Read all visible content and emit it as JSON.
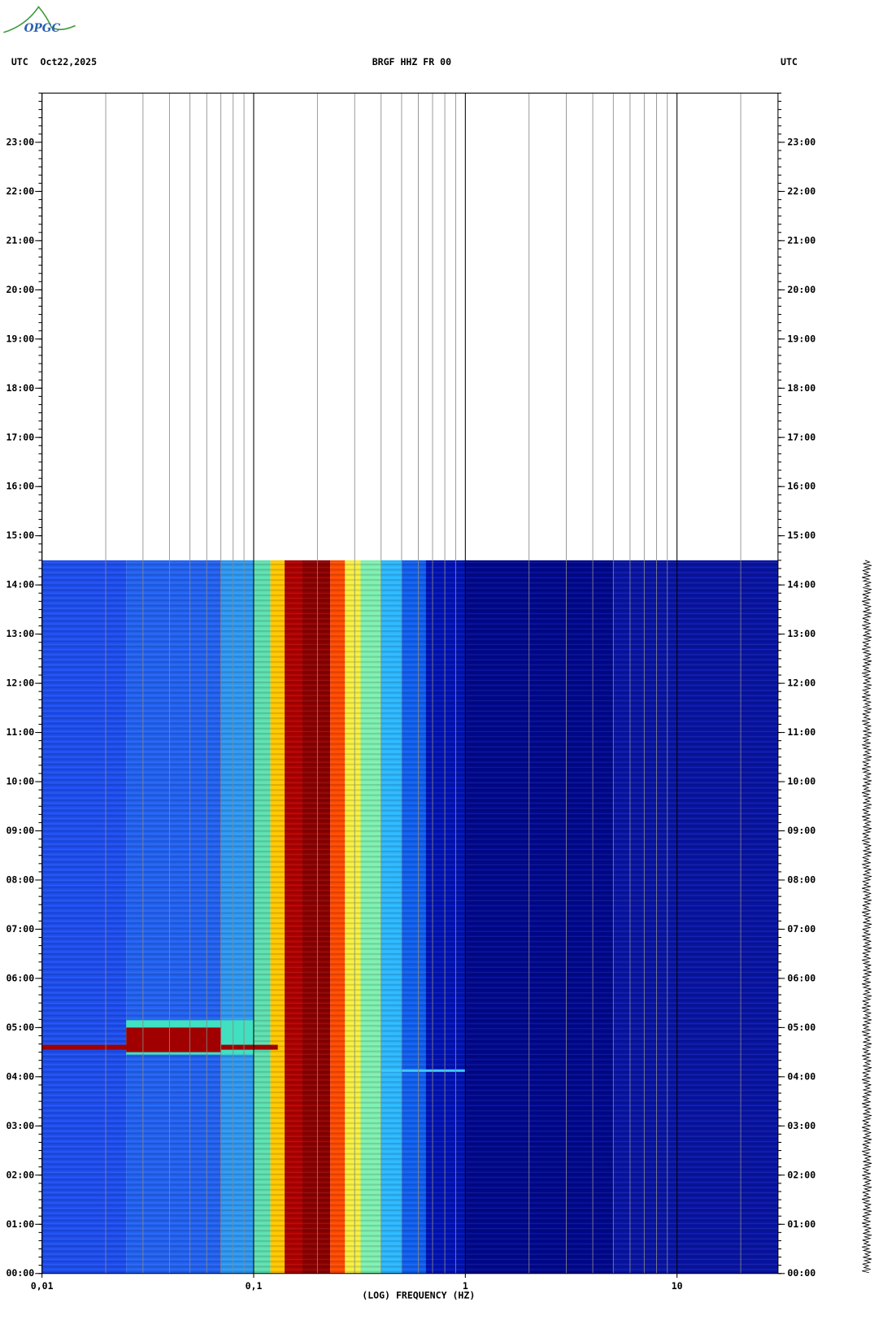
{
  "logo": "OPGC",
  "chart_data": {
    "type": "spectrogram",
    "title": "BRGF HHZ FR 00",
    "left_label": "UTC",
    "date": "Oct22,2025",
    "right_label": "UTC",
    "xlabel": "(LOG) FREQUENCY (HZ)",
    "xscale": "log",
    "xlim": [
      0.01,
      30
    ],
    "xticks": [
      {
        "value": 0.01,
        "label": "0,01"
      },
      {
        "value": 0.1,
        "label": "0,1"
      },
      1,
      10
    ],
    "ylim": [
      0,
      24
    ],
    "yticks": [
      {
        "value": 0,
        "label": "00:00"
      },
      {
        "value": 1,
        "label": "01:00"
      },
      {
        "value": 2,
        "label": "02:00"
      },
      {
        "value": 3,
        "label": "03:00"
      },
      {
        "value": 4,
        "label": "04:00"
      },
      {
        "value": 5,
        "label": "05:00"
      },
      {
        "value": 6,
        "label": "06:00"
      },
      {
        "value": 7,
        "label": "07:00"
      },
      {
        "value": 8,
        "label": "08:00"
      },
      {
        "value": 9,
        "label": "09:00"
      },
      {
        "value": 10,
        "label": "10:00"
      },
      {
        "value": 11,
        "label": "11:00"
      },
      {
        "value": 12,
        "label": "12:00"
      },
      {
        "value": 13,
        "label": "13:00"
      },
      {
        "value": 14,
        "label": "14:00"
      },
      {
        "value": 15,
        "label": "15:00"
      },
      {
        "value": 16,
        "label": "16:00"
      },
      {
        "value": 17,
        "label": "17:00"
      },
      {
        "value": 18,
        "label": "18:00"
      },
      {
        "value": 19,
        "label": "19:00"
      },
      {
        "value": 20,
        "label": "20:00"
      },
      {
        "value": 21,
        "label": "21:00"
      },
      {
        "value": 22,
        "label": "22:00"
      },
      {
        "value": 23,
        "label": "23:00"
      }
    ],
    "data_end": 14.5,
    "bands": [
      {
        "from": 0.01,
        "to": 0.025,
        "color": "#1e4ef0"
      },
      {
        "from": 0.025,
        "to": 0.07,
        "color": "#2262f2"
      },
      {
        "from": 0.07,
        "to": 0.1,
        "color": "#2e98f2"
      },
      {
        "from": 0.1,
        "to": 0.12,
        "color": "#5ee0b0"
      },
      {
        "from": 0.12,
        "to": 0.14,
        "color": "#ffc800"
      },
      {
        "from": 0.14,
        "to": 0.17,
        "color": "#b00000"
      },
      {
        "from": 0.17,
        "to": 0.23,
        "color": "#8c0000"
      },
      {
        "from": 0.23,
        "to": 0.27,
        "color": "#ff4a00"
      },
      {
        "from": 0.27,
        "to": 0.32,
        "color": "#f6f040"
      },
      {
        "from": 0.32,
        "to": 0.4,
        "color": "#7ef0b0"
      },
      {
        "from": 0.4,
        "to": 0.5,
        "color": "#2cb8ff"
      },
      {
        "from": 0.5,
        "to": 0.65,
        "color": "#1060f0"
      },
      {
        "from": 0.65,
        "to": 1,
        "color": "#0012b4"
      },
      {
        "from": 1,
        "to": 5,
        "color": "#00088e"
      },
      {
        "from": 5,
        "to": 30,
        "color": "#0814a4"
      }
    ],
    "events": [
      {
        "from": 0.025,
        "to": 0.1,
        "t0": 4.45,
        "t1": 5.15,
        "color": "#40e0c0"
      },
      {
        "from": 0.025,
        "to": 0.07,
        "t0": 4.5,
        "t1": 5.0,
        "color": "#a00000"
      },
      {
        "from": 0.01,
        "to": 0.13,
        "t0": 4.55,
        "t1": 4.65,
        "color": "#a00000"
      },
      {
        "from": 0.4,
        "to": 1,
        "t0": 4.1,
        "t1": 4.15,
        "color": "#40c8ff"
      }
    ]
  }
}
